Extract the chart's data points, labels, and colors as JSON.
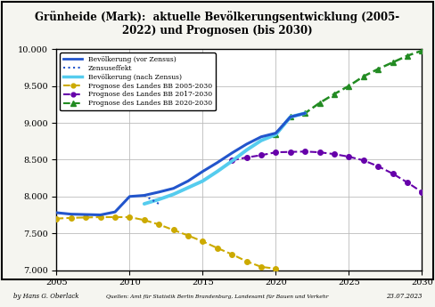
{
  "title": "Grünheide (Mark):  aktuelle Bevölkerungsentwicklung (2005-\n2022) und Prognosen (bis 2030)",
  "ylim": [
    7000,
    10000
  ],
  "xlim": [
    2005,
    2030
  ],
  "yticks": [
    7000,
    7500,
    8000,
    8500,
    9000,
    9500,
    10000
  ],
  "xticks": [
    2005,
    2010,
    2015,
    2020,
    2025,
    2030
  ],
  "footer_left": "by Hans G. Oberlack",
  "footer_center": "Quellen: Amt für Statistik Berlin Brandenburg, Landesamt für Bauen und Verkehr",
  "footer_right": "23.07.2023",
  "line_bev_vor_zensus": {
    "x": [
      2005,
      2006,
      2007,
      2008,
      2009,
      2010,
      2011,
      2012,
      2013,
      2014,
      2015,
      2016,
      2017,
      2018,
      2019,
      2020,
      2021,
      2022
    ],
    "y": [
      7780,
      7760,
      7755,
      7750,
      7790,
      8000,
      8015,
      8060,
      8110,
      8210,
      8340,
      8460,
      8590,
      8710,
      8810,
      8860,
      9080,
      9130
    ],
    "color": "#2255CC",
    "linewidth": 2.2,
    "label": "Bevölkerung (vor Zensus)"
  },
  "line_zensuseffekt": {
    "x": [
      2011,
      2012
    ],
    "y": [
      8015,
      7900
    ],
    "color": "#2255CC",
    "linewidth": 1.5,
    "label": "Zensuseffekt"
  },
  "line_bev_nach_zensus": {
    "x": [
      2011,
      2012,
      2013,
      2014,
      2015,
      2016,
      2017,
      2018,
      2019,
      2020,
      2021,
      2022
    ],
    "y": [
      7900,
      7960,
      8030,
      8120,
      8210,
      8340,
      8480,
      8630,
      8760,
      8840,
      9080,
      9130
    ],
    "color": "#55CCEE",
    "linewidth": 2.8,
    "label": "Bevölkerung (nach Zensus)"
  },
  "line_prognose_2005": {
    "x": [
      2005,
      2006,
      2007,
      2008,
      2009,
      2010,
      2011,
      2012,
      2013,
      2014,
      2015,
      2016,
      2017,
      2018,
      2019,
      2020
    ],
    "y": [
      7700,
      7710,
      7715,
      7720,
      7720,
      7720,
      7680,
      7620,
      7545,
      7470,
      7390,
      7300,
      7215,
      7120,
      7045,
      7020
    ],
    "color": "#CCAA00",
    "linewidth": 1.5,
    "marker": "o",
    "markersize": 4,
    "label": "Prognose des Landes BB 2005-2030"
  },
  "line_prognose_2017": {
    "x": [
      2017,
      2018,
      2019,
      2020,
      2021,
      2022,
      2023,
      2024,
      2025,
      2026,
      2027,
      2028,
      2029,
      2030
    ],
    "y": [
      8490,
      8530,
      8560,
      8600,
      8605,
      8610,
      8600,
      8575,
      8540,
      8490,
      8410,
      8310,
      8190,
      8060
    ],
    "color": "#6600AA",
    "linewidth": 1.5,
    "marker": "o",
    "markersize": 4,
    "label": "Prognose des Landes BB 2017-2030"
  },
  "line_prognose_2020": {
    "x": [
      2020,
      2021,
      2022,
      2023,
      2024,
      2025,
      2026,
      2027,
      2028,
      2029,
      2030
    ],
    "y": [
      8840,
      9080,
      9130,
      9270,
      9390,
      9500,
      9630,
      9730,
      9820,
      9910,
      9980
    ],
    "color": "#228B22",
    "linewidth": 1.8,
    "marker": "^",
    "markersize": 5,
    "label": "Prognose des Landes BB 2020-2030"
  },
  "background_color": "#F5F5F0",
  "plot_bg_color": "#FFFFFF",
  "grid_color": "#BBBBBB",
  "border_color": "#000000"
}
